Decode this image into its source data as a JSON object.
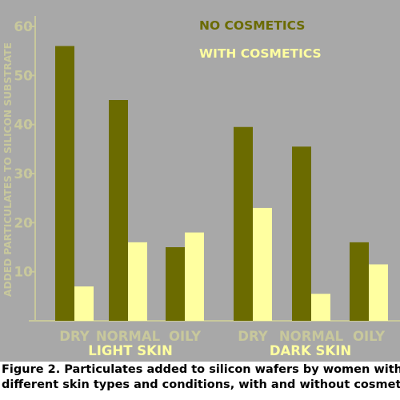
{
  "colors": {
    "background": "#a8a8a8",
    "no_cosmetics": "#6b6b00",
    "with_cosmetics": "#ffffa0",
    "axis_text": "#c8c89c",
    "axis_line": "#c8c89c",
    "legend_no": "#6b6b00",
    "legend_with": "#ffffa0",
    "group_label": "#ffffa0"
  },
  "chart_data": {
    "type": "bar",
    "ylabel": "ADDED PARTICULATES TO SILICON SUBSTRATE",
    "ylim": [
      0,
      60
    ],
    "yticks": [
      "10",
      "20",
      "30",
      "40",
      "50",
      "60"
    ],
    "ytick_values": [
      10,
      20,
      30,
      40,
      50,
      60
    ],
    "categories": [
      "DRY",
      "NORMAL",
      "OILY",
      "DRY",
      "NORMAL",
      "OILY"
    ],
    "groups": [
      "LIGHT SKIN",
      "DARK SKIN"
    ],
    "series": [
      {
        "name": "NO COSMETICS",
        "values": [
          56,
          45,
          15,
          39.5,
          35.5,
          16
        ]
      },
      {
        "name": "WITH COSMETICS",
        "values": [
          7,
          16,
          18,
          23,
          5.5,
          11.5
        ]
      }
    ],
    "grid": false,
    "legend_position": "top-right"
  },
  "caption": {
    "line1": "Figure 2.  Particulates added to silicon wafers by women with",
    "line2": "different skin types and conditions, with and without cosmetics"
  }
}
